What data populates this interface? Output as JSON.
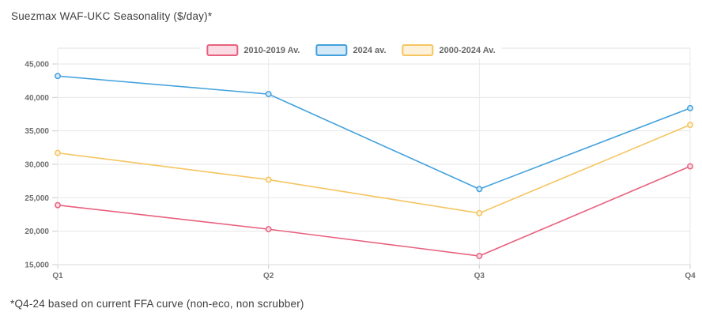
{
  "title": "Suezmax WAF-UKC Seasonality ($/day)*",
  "footnote": "*Q4-24 based on current FFA curve (non-eco, non scrubber)",
  "chart_data": {
    "type": "line",
    "title": "Suezmax WAF-UKC Seasonality ($/day)*",
    "categories": [
      "Q1",
      "Q2",
      "Q3",
      "Q4"
    ],
    "series": [
      {
        "name": "2010-2019 Av.",
        "color": "#e8607e",
        "swatch_fill": "#fbdbe4",
        "values": [
          23900,
          20300,
          16300,
          29700
        ]
      },
      {
        "name": "2024 av.",
        "color": "#42a1dc",
        "swatch_fill": "#d3e9f8",
        "values": [
          43200,
          40500,
          26300,
          38400
        ]
      },
      {
        "name": "2000-2024 Av.",
        "color": "#f5c560",
        "swatch_fill": "#fdf2d9",
        "values": [
          31700,
          27700,
          22700,
          35900
        ]
      }
    ],
    "xlabel": "",
    "ylabel": "",
    "ylim": [
      15000,
      45000
    ],
    "ytick_step": 5000,
    "ytick_labels": [
      "15,000",
      "20,000",
      "25,000",
      "30,000",
      "35,000",
      "40,000",
      "45,000"
    ],
    "grid": true,
    "legend_position": "top-center"
  },
  "colors": {
    "grid": "#e6e6e6",
    "frame": "#e2e2e2",
    "tick": "#cccccc",
    "axis_text": "#6e6e6e",
    "title_text": "#3d3d3d"
  }
}
